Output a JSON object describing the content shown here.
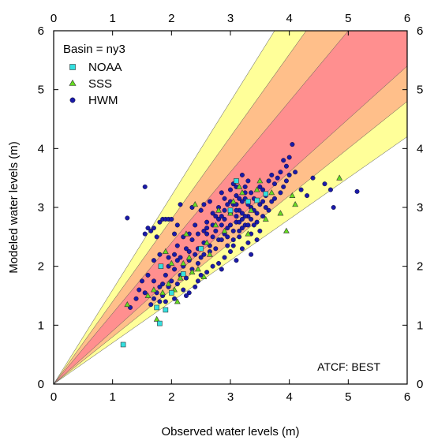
{
  "chart_data": {
    "type": "scatter",
    "title": "",
    "xlabel": "Observed water levels (m)",
    "ylabel": "Modeled water levels (m)",
    "xlim": [
      0,
      6
    ],
    "ylim": [
      0,
      6
    ],
    "xticks": [
      "0",
      "1",
      "2",
      "3",
      "4",
      "5",
      "6"
    ],
    "yticks": [
      "0",
      "1",
      "2",
      "3",
      "4",
      "5",
      "6"
    ],
    "legend_title": "Basin = ny3",
    "legend_position": "top-left",
    "annotation": "ATCF: BEST",
    "error_bands": {
      "outer_slopes": [
        0.7,
        1.6
      ],
      "middle_slopes": [
        0.8,
        1.4
      ],
      "inner_slopes": [
        0.9,
        1.2
      ],
      "colors": {
        "outer": "#ffff99",
        "middle": "#ffbf8a",
        "inner": "#ff8f8f"
      }
    },
    "series": [
      {
        "name": "NOAA",
        "marker": "square",
        "color": "#33e0e0",
        "points": [
          [
            1.18,
            0.67
          ],
          [
            1.8,
            1.03
          ],
          [
            1.9,
            1.26
          ],
          [
            1.75,
            1.3
          ],
          [
            1.82,
            2.0
          ],
          [
            3.1,
            3.45
          ],
          [
            3.6,
            3.23
          ],
          [
            3.45,
            3.12
          ],
          [
            3.0,
            2.95
          ],
          [
            2.5,
            2.3
          ],
          [
            2.2,
            1.87
          ],
          [
            2.0,
            1.55
          ],
          [
            3.3,
            3.1
          ]
        ]
      },
      {
        "name": "SSS",
        "marker": "triangle",
        "color": "#66dd22",
        "points": [
          [
            1.25,
            1.35
          ],
          [
            1.75,
            1.1
          ],
          [
            1.85,
            1.55
          ],
          [
            1.95,
            1.7
          ],
          [
            2.05,
            1.6
          ],
          [
            2.15,
            1.8
          ],
          [
            2.2,
            2.05
          ],
          [
            2.3,
            2.15
          ],
          [
            2.35,
            1.9
          ],
          [
            2.45,
            1.95
          ],
          [
            2.55,
            1.82
          ],
          [
            2.6,
            2.4
          ],
          [
            2.75,
            2.7
          ],
          [
            2.9,
            2.6
          ],
          [
            3.0,
            2.9
          ],
          [
            3.05,
            3.1
          ],
          [
            3.15,
            3.35
          ],
          [
            3.2,
            3.25
          ],
          [
            3.35,
            2.95
          ],
          [
            3.45,
            3.3
          ],
          [
            3.6,
            2.8
          ],
          [
            3.7,
            3.25
          ],
          [
            3.85,
            2.9
          ],
          [
            3.95,
            2.6
          ],
          [
            4.05,
            3.2
          ],
          [
            4.1,
            3.05
          ],
          [
            4.85,
            3.5
          ],
          [
            2.4,
            3.05
          ],
          [
            2.25,
            2.55
          ],
          [
            2.0,
            2.05
          ],
          [
            1.9,
            2.25
          ],
          [
            1.7,
            1.6
          ],
          [
            2.8,
            2.95
          ],
          [
            3.3,
            2.55
          ],
          [
            3.5,
            3.45
          ],
          [
            1.6,
            1.5
          ],
          [
            2.1,
            1.4
          ],
          [
            2.65,
            2.2
          ]
        ]
      },
      {
        "name": "HWM",
        "marker": "circle",
        "color": "#1a1aa8",
        "points": [
          [
            1.25,
            2.82
          ],
          [
            1.55,
            3.35
          ],
          [
            1.55,
            2.55
          ],
          [
            1.6,
            2.65
          ],
          [
            1.65,
            2.6
          ],
          [
            1.7,
            2.65
          ],
          [
            1.75,
            2.5
          ],
          [
            1.8,
            2.75
          ],
          [
            1.85,
            2.8
          ],
          [
            1.9,
            2.8
          ],
          [
            1.95,
            2.8
          ],
          [
            2.0,
            2.8
          ],
          [
            2.05,
            2.55
          ],
          [
            2.1,
            2.7
          ],
          [
            2.2,
            2.5
          ],
          [
            2.15,
            3.05
          ],
          [
            2.3,
            2.55
          ],
          [
            2.4,
            2.7
          ],
          [
            2.45,
            2.55
          ],
          [
            2.5,
            2.95
          ],
          [
            2.55,
            3.05
          ],
          [
            2.6,
            2.65
          ],
          [
            2.35,
            3.0
          ],
          [
            2.25,
            2.3
          ],
          [
            2.1,
            2.35
          ],
          [
            1.95,
            2.15
          ],
          [
            1.8,
            2.2
          ],
          [
            1.7,
            2.1
          ],
          [
            1.6,
            1.85
          ],
          [
            1.5,
            1.75
          ],
          [
            1.45,
            1.6
          ],
          [
            1.4,
            1.45
          ],
          [
            1.3,
            1.3
          ],
          [
            1.65,
            1.35
          ],
          [
            1.7,
            1.45
          ],
          [
            1.75,
            1.55
          ],
          [
            1.8,
            1.4
          ],
          [
            1.85,
            1.7
          ],
          [
            1.9,
            1.85
          ],
          [
            1.95,
            1.65
          ],
          [
            2.0,
            1.75
          ],
          [
            2.05,
            1.95
          ],
          [
            2.1,
            1.7
          ],
          [
            2.15,
            1.85
          ],
          [
            2.2,
            1.6
          ],
          [
            2.25,
            1.8
          ],
          [
            2.3,
            2.1
          ],
          [
            2.35,
            1.95
          ],
          [
            2.4,
            2.2
          ],
          [
            2.45,
            2.3
          ],
          [
            2.5,
            2.15
          ],
          [
            2.55,
            2.4
          ],
          [
            2.6,
            2.55
          ],
          [
            2.65,
            2.35
          ],
          [
            2.7,
            2.5
          ],
          [
            2.75,
            2.6
          ],
          [
            2.8,
            2.45
          ],
          [
            2.85,
            2.7
          ],
          [
            2.9,
            2.8
          ],
          [
            2.95,
            2.65
          ],
          [
            3.0,
            2.9
          ],
          [
            3.05,
            3.05
          ],
          [
            3.1,
            3.2
          ],
          [
            3.15,
            2.95
          ],
          [
            3.2,
            3.1
          ],
          [
            3.25,
            3.25
          ],
          [
            3.3,
            2.85
          ],
          [
            3.35,
            3.0
          ],
          [
            3.4,
            3.15
          ],
          [
            3.45,
            2.9
          ],
          [
            3.5,
            3.05
          ],
          [
            3.55,
            3.3
          ],
          [
            3.6,
            3.2
          ],
          [
            3.65,
            3.45
          ],
          [
            3.7,
            3.55
          ],
          [
            3.75,
            3.4
          ],
          [
            3.8,
            3.5
          ],
          [
            3.85,
            3.6
          ],
          [
            3.9,
            3.35
          ],
          [
            3.95,
            3.7
          ],
          [
            4.0,
            3.85
          ],
          [
            4.05,
            4.07
          ],
          [
            4.1,
            3.6
          ],
          [
            4.2,
            3.3
          ],
          [
            4.3,
            3.2
          ],
          [
            4.4,
            3.5
          ],
          [
            4.6,
            3.4
          ],
          [
            4.7,
            3.3
          ],
          [
            4.75,
            3.0
          ],
          [
            5.15,
            3.27
          ],
          [
            3.0,
            3.3
          ],
          [
            3.05,
            2.6
          ],
          [
            3.1,
            2.75
          ],
          [
            3.15,
            2.5
          ],
          [
            3.2,
            2.65
          ],
          [
            3.25,
            2.7
          ],
          [
            3.3,
            2.4
          ],
          [
            3.35,
            2.55
          ],
          [
            3.4,
            2.7
          ],
          [
            3.45,
            2.45
          ],
          [
            2.9,
            3.15
          ],
          [
            2.95,
            3.05
          ],
          [
            2.85,
            3.25
          ],
          [
            2.8,
            3.0
          ],
          [
            2.75,
            2.85
          ],
          [
            2.7,
            2.9
          ],
          [
            2.65,
            3.1
          ],
          [
            3.3,
            3.45
          ],
          [
            3.25,
            3.35
          ],
          [
            3.2,
            3.55
          ],
          [
            3.1,
            3.35
          ],
          [
            3.05,
            3.4
          ],
          [
            3.5,
            2.6
          ],
          [
            3.55,
            2.85
          ],
          [
            3.6,
            3.0
          ],
          [
            3.65,
            2.95
          ],
          [
            3.7,
            3.1
          ],
          [
            3.75,
            3.15
          ],
          [
            3.85,
            3.25
          ],
          [
            3.95,
            3.45
          ],
          [
            4.0,
            3.55
          ],
          [
            3.9,
            3.8
          ],
          [
            3.35,
            2.2
          ],
          [
            3.2,
            2.3
          ],
          [
            3.1,
            2.1
          ],
          [
            3.0,
            2.25
          ],
          [
            2.9,
            2.15
          ],
          [
            2.8,
            2.05
          ],
          [
            2.7,
            2.0
          ],
          [
            2.6,
            1.9
          ],
          [
            2.5,
            1.85
          ],
          [
            2.45,
            1.75
          ],
          [
            2.4,
            1.65
          ],
          [
            2.3,
            1.55
          ],
          [
            2.25,
            1.5
          ],
          [
            2.05,
            1.45
          ],
          [
            1.9,
            1.4
          ],
          [
            1.85,
            1.5
          ],
          [
            2.85,
            1.95
          ],
          [
            2.95,
            2.35
          ],
          [
            3.05,
            2.45
          ],
          [
            3.15,
            2.75
          ],
          [
            3.25,
            2.85
          ],
          [
            3.35,
            2.8
          ],
          [
            3.45,
            2.75
          ],
          [
            3.55,
            3.1
          ],
          [
            2.1,
            2.1
          ],
          [
            2.2,
            2.0
          ],
          [
            2.3,
            2.25
          ],
          [
            2.55,
            2.2
          ],
          [
            2.65,
            2.25
          ],
          [
            2.75,
            2.3
          ],
          [
            2.85,
            2.45
          ],
          [
            2.95,
            2.5
          ],
          [
            1.95,
            2.0
          ],
          [
            2.05,
            2.2
          ],
          [
            3.0,
            3.1
          ],
          [
            3.1,
            2.95
          ],
          [
            3.2,
            2.9
          ],
          [
            3.3,
            3.05
          ],
          [
            3.4,
            2.95
          ],
          [
            3.5,
            3.35
          ],
          [
            3.1,
            3.05
          ],
          [
            3.15,
            3.15
          ],
          [
            2.9,
            2.95
          ],
          [
            2.85,
            2.85
          ],
          [
            3.25,
            3.15
          ],
          [
            3.35,
            3.25
          ],
          [
            1.55,
            1.55
          ],
          [
            1.7,
            1.75
          ],
          [
            1.8,
            1.65
          ],
          [
            2.45,
            2.05
          ],
          [
            2.55,
            2.6
          ],
          [
            2.6,
            2.75
          ],
          [
            2.7,
            2.7
          ],
          [
            2.8,
            2.8
          ],
          [
            3.0,
            2.7
          ],
          [
            3.1,
            2.85
          ],
          [
            3.2,
            2.8
          ],
          [
            3.3,
            2.7
          ],
          [
            2.9,
            2.55
          ],
          [
            3.05,
            2.35
          ],
          [
            3.15,
            2.6
          ],
          [
            2.35,
            2.45
          ],
          [
            2.15,
            2.15
          ]
        ]
      }
    ]
  }
}
